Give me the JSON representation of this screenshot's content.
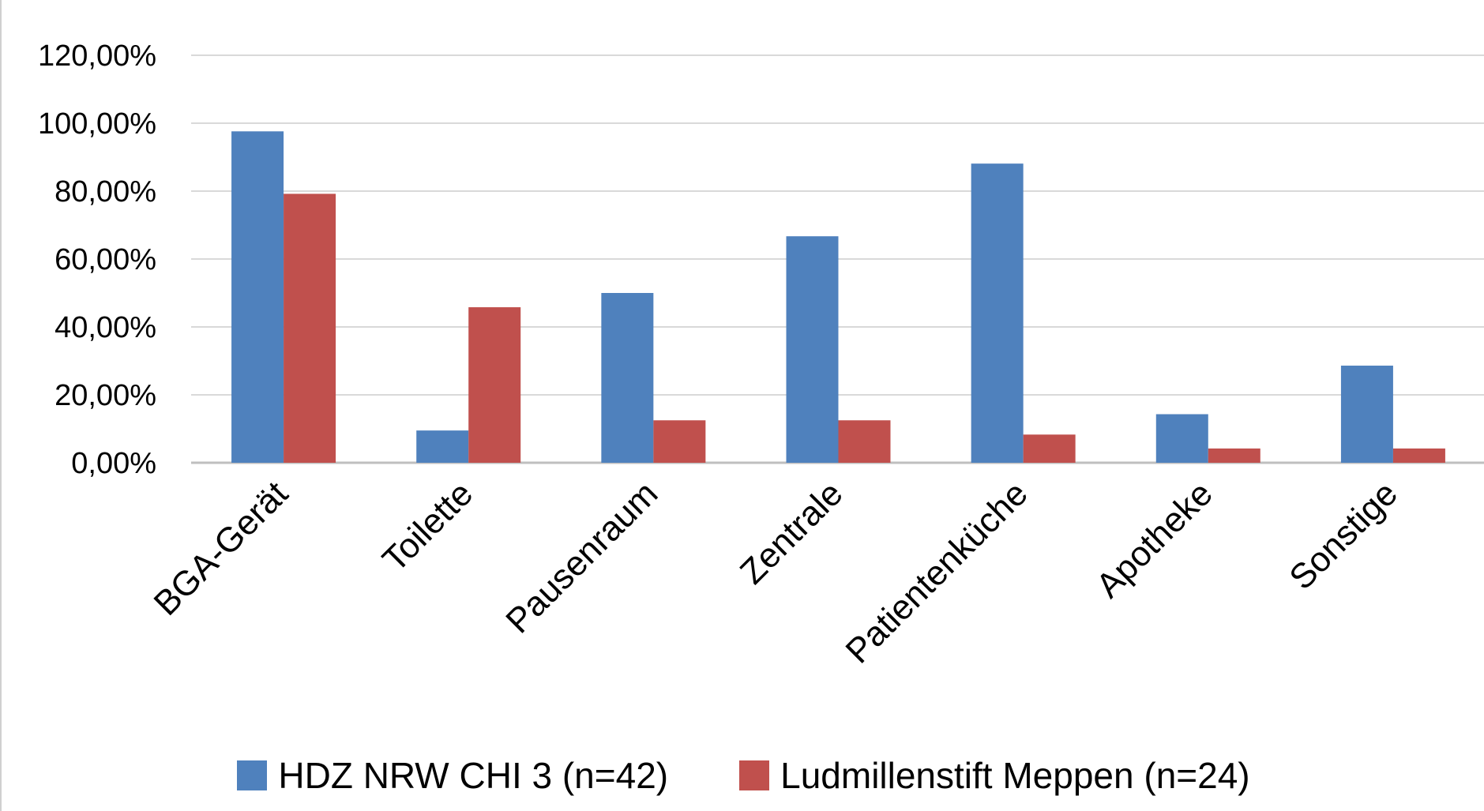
{
  "chart_data": {
    "type": "bar",
    "categories": [
      "BGA-Gerät",
      "Toilette",
      "Pausenraum",
      "Zentrale",
      "Patientenküche",
      "Apotheke",
      "Sonstige"
    ],
    "series": [
      {
        "name": "HDZ NRW CHI 3 (n=42)",
        "color": "#4f81bd",
        "values": [
          97.6,
          9.5,
          50.0,
          66.7,
          88.1,
          14.3,
          28.6
        ]
      },
      {
        "name": "Ludmillenstift Meppen (n=24)",
        "color": "#c0504d",
        "values": [
          79.2,
          45.8,
          12.5,
          12.5,
          8.3,
          4.2,
          4.2
        ]
      }
    ],
    "yticks": [
      "0,00%",
      "20,00%",
      "40,00%",
      "60,00%",
      "80,00%",
      "100,00%",
      "120,00%"
    ],
    "ylim": [
      0,
      120
    ],
    "grid": true,
    "legend_position": "bottom",
    "title": "",
    "xlabel": "",
    "ylabel": ""
  }
}
